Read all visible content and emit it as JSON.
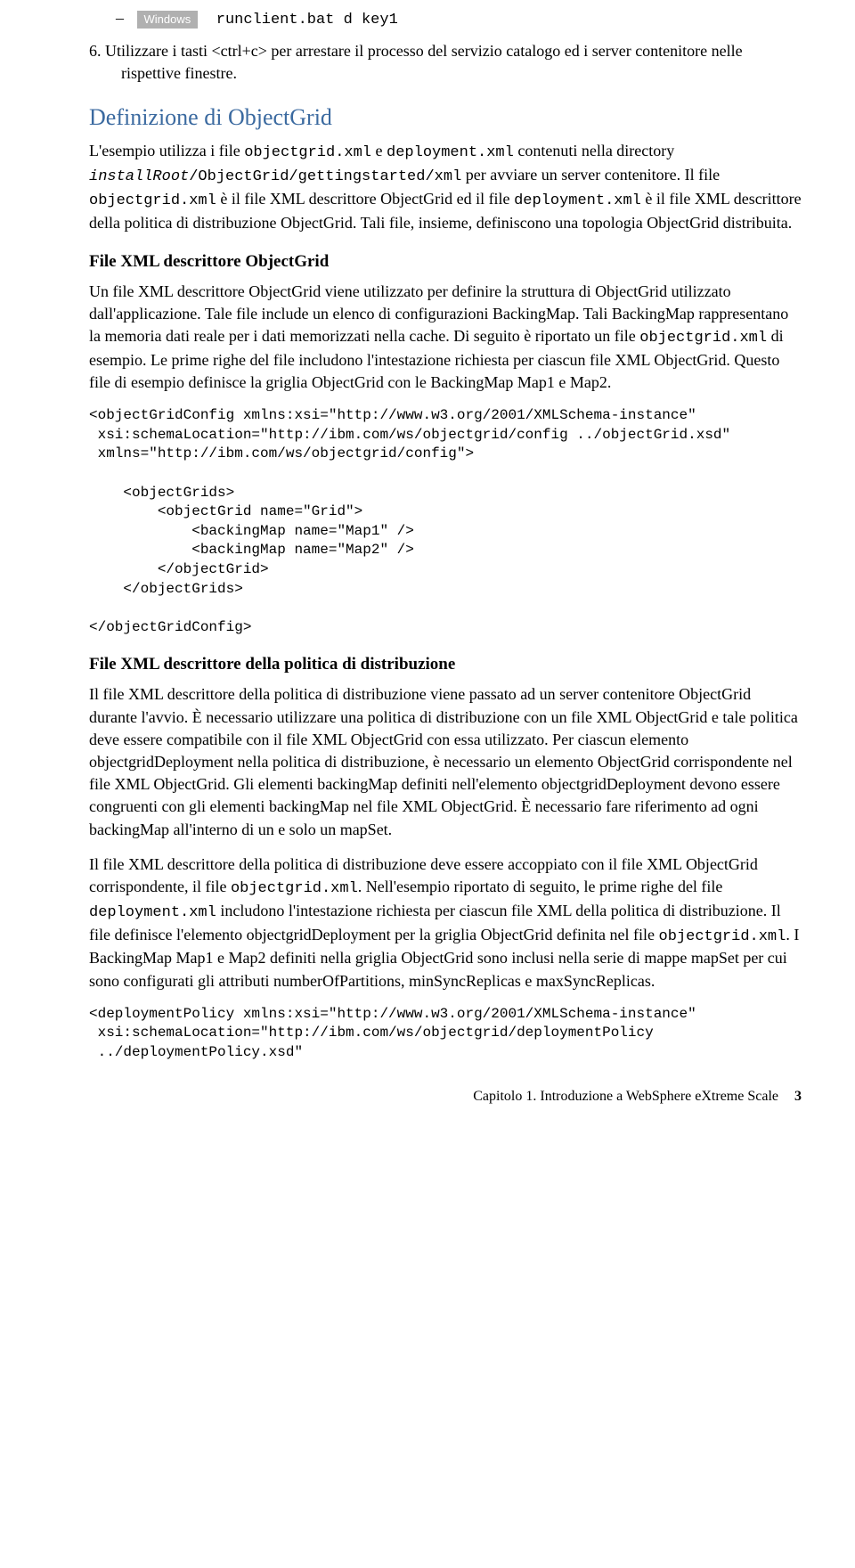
{
  "windows_label": "Windows",
  "runclient_cmd": "runclient.bat d key1",
  "step6": "6.  Utilizzare i tasti <ctrl+c> per arrestare il processo del servizio catalogo ed i server contenitore nelle rispettive finestre.",
  "section1_title": "Definizione di ObjectGrid",
  "para1_1": "L'esempio utilizza i file ",
  "para1_code1": "objectgrid.xml",
  "para1_2": " e ",
  "para1_code2": "deployment.xml",
  "para1_3": " contenuti nella directory ",
  "para1_code3": "installRoot",
  "para1_code4": "/ObjectGrid/gettingstarted/xml",
  "para1_4": " per avviare un server contenitore. Il file ",
  "para1_code5": "objectgrid.xml",
  "para1_5": " è il file XML descrittore ObjectGrid ed il file ",
  "para1_code6": "deployment.xml",
  "para1_6": " è il file XML descrittore della politica di distribuzione ObjectGrid. Tali file, insieme, definiscono una topologia ObjectGrid distribuita.",
  "section2_title": "File XML descrittore ObjectGrid",
  "para2_1": "Un file XML descrittore ObjectGrid viene utilizzato per definire la struttura di ObjectGrid utilizzato dall'applicazione. Tale file include un elenco di configurazioni BackingMap. Tali BackingMap rappresentano la memoria dati reale per i dati memorizzati nella cache. Di seguito è riportato un file ",
  "para2_code1": "objectgrid.xml",
  "para2_2": " di esempio. Le prime righe del file includono l'intestazione richiesta per ciascun file XML ObjectGrid. Questo file di esempio definisce la griglia ObjectGrid con le BackingMap Map1 e Map2.",
  "code1": "<objectGridConfig xmlns:xsi=\"http://www.w3.org/2001/XMLSchema-instance\"\n xsi:schemaLocation=\"http://ibm.com/ws/objectgrid/config ../objectGrid.xsd\"\n xmlns=\"http://ibm.com/ws/objectgrid/config\">\n\n    <objectGrids>\n        <objectGrid name=\"Grid\">\n            <backingMap name=\"Map1\" />\n            <backingMap name=\"Map2\" />\n        </objectGrid>\n    </objectGrids>\n\n</objectGridConfig>",
  "section3_title": "File XML descrittore della politica di distribuzione",
  "para3": "Il file XML descrittore della politica di distribuzione viene passato ad un server contenitore ObjectGrid durante l'avvio. È necessario utilizzare una politica di distribuzione con un file XML ObjectGrid e tale politica deve essere compatibile con il file XML ObjectGrid con essa utilizzato. Per ciascun elemento objectgridDeployment nella politica di distribuzione, è necessario un elemento ObjectGrid corrispondente nel file XML ObjectGrid. Gli elementi backingMap definiti nell'elemento objectgridDeployment devono essere congruenti con gli elementi backingMap nel file XML ObjectGrid. È necessario fare riferimento ad ogni backingMap all'interno di un e solo un mapSet.",
  "para4_1": "Il file XML descrittore della politica di distribuzione deve essere accoppiato con il file XML ObjectGrid corrispondente, il file ",
  "para4_code1": "objectgrid.xml",
  "para4_2": ". Nell'esempio riportato di seguito, le prime righe del file ",
  "para4_code2": "deployment.xml",
  "para4_3": " includono l'intestazione richiesta per ciascun file XML della politica di distribuzione. Il file definisce l'elemento objectgridDeployment per la griglia ObjectGrid definita nel file ",
  "para4_code3": "objectgrid.xml",
  "para4_4": ". I BackingMap Map1 e Map2 definiti nella griglia ObjectGrid sono inclusi nella serie di mappe mapSet per cui sono configurati gli attributi numberOfPartitions, minSyncReplicas e maxSyncReplicas.",
  "code2": "<deploymentPolicy xmlns:xsi=\"http://www.w3.org/2001/XMLSchema-instance\"\n xsi:schemaLocation=\"http://ibm.com/ws/objectgrid/deploymentPolicy\n ../deploymentPolicy.xsd\"",
  "footer_text": "Capitolo 1. Introduzione a WebSphere eXtreme Scale",
  "footer_page": "3"
}
